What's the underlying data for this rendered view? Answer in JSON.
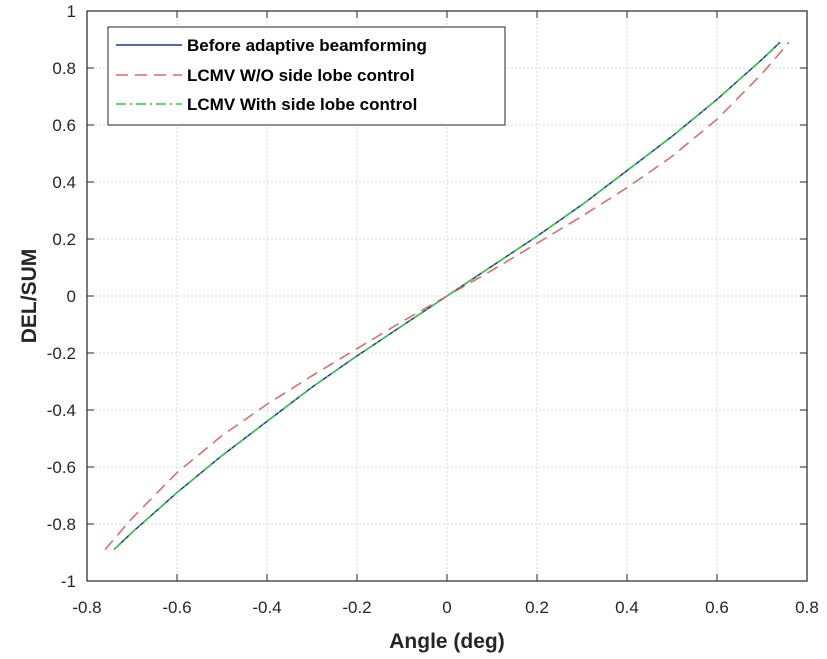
{
  "chart_data": {
    "type": "line",
    "title": "",
    "xlabel": "Angle (deg)",
    "ylabel": "DEL/SUM",
    "xlim": [
      -0.8,
      0.8
    ],
    "ylim": [
      -1,
      1
    ],
    "xticks": [
      -0.8,
      -0.6,
      -0.4,
      -0.2,
      0,
      0.2,
      0.4,
      0.6,
      0.8
    ],
    "yticks": [
      -1,
      -0.8,
      -0.6,
      -0.4,
      -0.2,
      0,
      0.2,
      0.4,
      0.6,
      0.8,
      1
    ],
    "xtick_labels": [
      "-0.8",
      "-0.6",
      "-0.4",
      "-0.2",
      "0",
      "0.2",
      "0.4",
      "0.6",
      "0.8"
    ],
    "ytick_labels": [
      "-1",
      "-0.8",
      "-0.6",
      "-0.4",
      "-0.2",
      "0",
      "0.2",
      "0.4",
      "0.6",
      "0.8",
      "1"
    ],
    "grid": true,
    "legend_position": "top-left",
    "series": [
      {
        "name": "Before adaptive beamforming",
        "color": "#1f3a93",
        "style": "solid",
        "x": [
          -0.74,
          -0.7,
          -0.6,
          -0.5,
          -0.4,
          -0.3,
          -0.2,
          -0.1,
          0,
          0.1,
          0.2,
          0.3,
          0.4,
          0.5,
          0.6,
          0.7,
          0.74
        ],
        "y": [
          -0.89,
          -0.83,
          -0.69,
          -0.56,
          -0.44,
          -0.32,
          -0.21,
          -0.105,
          0,
          0.105,
          0.21,
          0.32,
          0.44,
          0.56,
          0.69,
          0.83,
          0.89
        ]
      },
      {
        "name": "LCMV W/O side lobe control",
        "color": "#e06666",
        "style": "dashed",
        "x": [
          -0.76,
          -0.7,
          -0.6,
          -0.5,
          -0.4,
          -0.3,
          -0.2,
          -0.1,
          0,
          0.1,
          0.2,
          0.3,
          0.4,
          0.5,
          0.6,
          0.7,
          0.76
        ],
        "y": [
          -0.89,
          -0.78,
          -0.62,
          -0.49,
          -0.38,
          -0.28,
          -0.185,
          -0.09,
          0,
          0.09,
          0.185,
          0.28,
          0.38,
          0.49,
          0.62,
          0.78,
          0.89
        ]
      },
      {
        "name": "LCMV With side lobe control",
        "color": "#2ecc40",
        "style": "dashdot",
        "x": [
          -0.74,
          -0.7,
          -0.6,
          -0.5,
          -0.4,
          -0.3,
          -0.2,
          -0.1,
          0,
          0.1,
          0.2,
          0.3,
          0.4,
          0.5,
          0.6,
          0.7,
          0.74
        ],
        "y": [
          -0.89,
          -0.83,
          -0.69,
          -0.56,
          -0.44,
          -0.32,
          -0.21,
          -0.105,
          0,
          0.105,
          0.21,
          0.32,
          0.44,
          0.56,
          0.69,
          0.83,
          0.89
        ]
      }
    ]
  }
}
